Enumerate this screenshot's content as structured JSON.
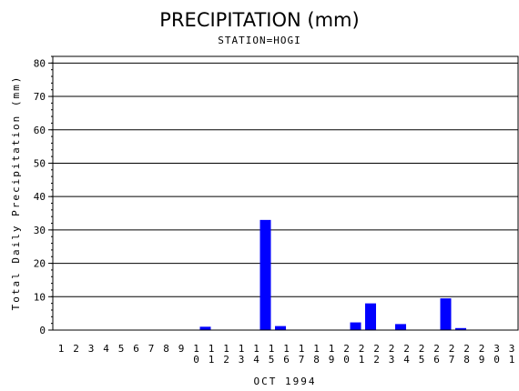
{
  "chart_data": {
    "type": "bar",
    "title": "PRECIPITATION (mm)",
    "subtitle": "STATION=HOGI",
    "ylabel": "Total Daily Precipitation (mm)",
    "xlabel": "OCT 1994",
    "ylim": [
      0,
      82
    ],
    "yticks": [
      0,
      10,
      20,
      30,
      40,
      50,
      60,
      70,
      80
    ],
    "grid": true,
    "bar_color": "#0000ff",
    "categories": [
      "1",
      "2",
      "3",
      "4",
      "5",
      "6",
      "7",
      "8",
      "9",
      "10",
      "11",
      "12",
      "13",
      "14",
      "15",
      "16",
      "17",
      "18",
      "19",
      "20",
      "21",
      "22",
      "23",
      "24",
      "25",
      "26",
      "27",
      "28",
      "29",
      "30",
      "31"
    ],
    "values": [
      0,
      0,
      0,
      0,
      0,
      0,
      0,
      0,
      0,
      1,
      0,
      0,
      0,
      33,
      1.2,
      0,
      0,
      0,
      0,
      2.3,
      8,
      0,
      1.8,
      0,
      0,
      9.5,
      0.6,
      0,
      0,
      0,
      0
    ]
  }
}
